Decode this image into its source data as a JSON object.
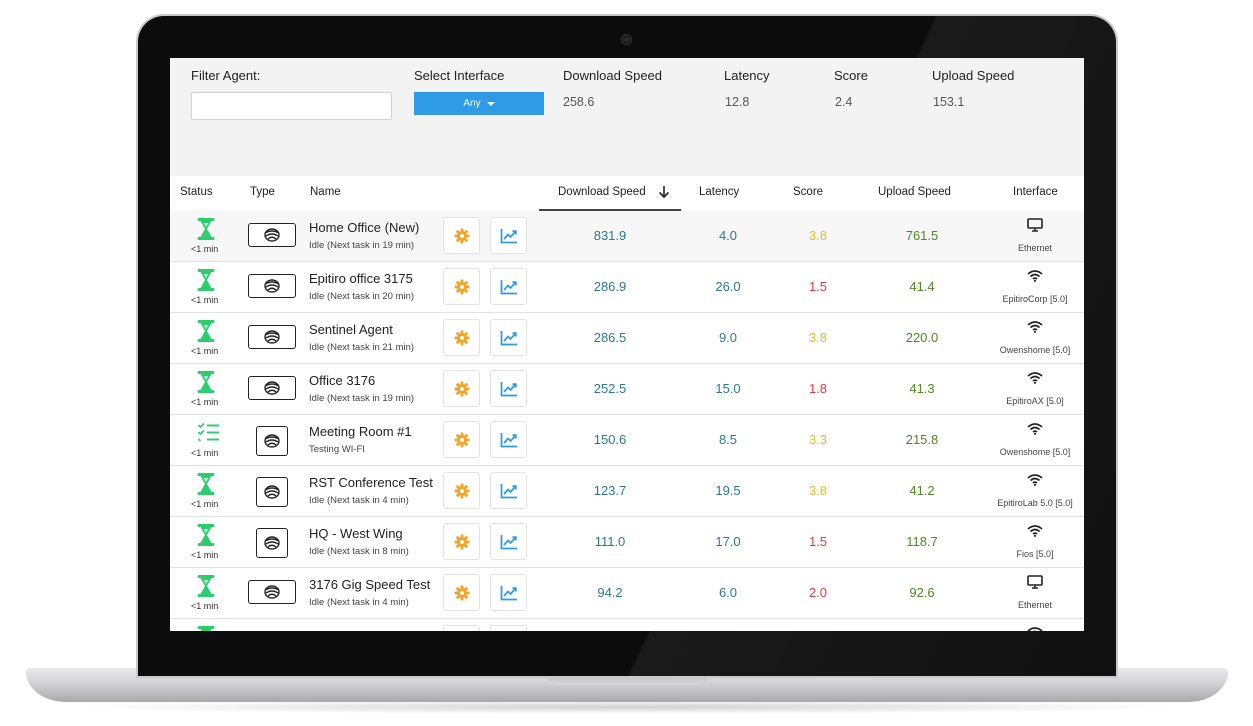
{
  "colors": {
    "accent": "#2f9be6",
    "status_green": "#2ecc71",
    "gear_orange": "#f0a428",
    "chart_blue": "#2f9be6",
    "download_teal": "#2b7a8c",
    "score_yellow": "#e2c12b",
    "score_red": "#e0393e",
    "upload_green": "#4d8a1f"
  },
  "filters": {
    "filter_agent_label": "Filter Agent:",
    "filter_agent_value": "",
    "select_interface_label": "Select Interface",
    "select_interface_value": "Any",
    "summary": {
      "download_label": "Download Speed",
      "download_value": "258.6",
      "latency_label": "Latency",
      "latency_value": "12.8",
      "score_label": "Score",
      "score_value": "2.4",
      "upload_label": "Upload Speed",
      "upload_value": "153.1"
    }
  },
  "table": {
    "headers": {
      "status": "Status",
      "type": "Type",
      "name": "Name",
      "download": "Download Speed",
      "latency": "Latency",
      "score": "Score",
      "upload": "Upload Speed",
      "interface": "Interface"
    },
    "sort_column": "Download Speed",
    "sort_direction": "descending",
    "rows": [
      {
        "status_icon": "hourglass-icon",
        "status_time": "<1 min",
        "type": "wide",
        "name": "Home Office (New)",
        "subtitle": "Idle (Next task in 19 min)",
        "download": "831.9",
        "latency": "4.0",
        "score": "3.8",
        "score_level": "yellow",
        "upload": "761.5",
        "iface_icon": "monitor-icon",
        "iface": "Ethernet"
      },
      {
        "status_icon": "hourglass-icon",
        "status_time": "<1 min",
        "type": "wide",
        "name": "Epitiro office 3175",
        "subtitle": "Idle (Next task in 20 min)",
        "download": "286.9",
        "latency": "26.0",
        "score": "1.5",
        "score_level": "red",
        "upload": "41.4",
        "iface_icon": "wifi-icon",
        "iface": "EpitiroCorp [5.0]"
      },
      {
        "status_icon": "hourglass-icon",
        "status_time": "<1 min",
        "type": "wide",
        "name": "Sentinel Agent",
        "subtitle": "Idle (Next task in 21 min)",
        "download": "286.5",
        "latency": "9.0",
        "score": "3.8",
        "score_level": "yellow",
        "upload": "220.0",
        "iface_icon": "wifi-icon",
        "iface": "Owenshome [5.0]"
      },
      {
        "status_icon": "hourglass-icon",
        "status_time": "<1 min",
        "type": "wide",
        "name": "Office 3176",
        "subtitle": "Idle (Next task in 19 min)",
        "download": "252.5",
        "latency": "15.0",
        "score": "1.8",
        "score_level": "red",
        "upload": "41.3",
        "iface_icon": "wifi-icon",
        "iface": "EpitiroAX [5.0]"
      },
      {
        "status_icon": "checklist-icon",
        "status_time": "<1 min",
        "type": "square",
        "name": "Meeting Room #1",
        "subtitle": "Testing WI-FI",
        "download": "150.6",
        "latency": "8.5",
        "score": "3.3",
        "score_level": "yellow",
        "upload": "215.8",
        "iface_icon": "wifi-icon",
        "iface": "Owenshome [5.0]"
      },
      {
        "status_icon": "hourglass-icon",
        "status_time": "<1 min",
        "type": "square",
        "name": "RST Conference Test",
        "subtitle": "Idle (Next task in 4 min)",
        "download": "123.7",
        "latency": "19.5",
        "score": "3.8",
        "score_level": "yellow",
        "upload": "41.2",
        "iface_icon": "wifi-icon",
        "iface": "EpitiroLab 5.0 [5.0]"
      },
      {
        "status_icon": "hourglass-icon",
        "status_time": "<1 min",
        "type": "square",
        "name": "HQ - West Wing",
        "subtitle": "Idle (Next task in 8 min)",
        "download": "111.0",
        "latency": "17.0",
        "score": "1.5",
        "score_level": "red",
        "upload": "118.7",
        "iface_icon": "wifi-icon",
        "iface": "Fios [5.0]"
      },
      {
        "status_icon": "hourglass-icon",
        "status_time": "<1 min",
        "type": "wide",
        "name": "3176 Gig Speed Test",
        "subtitle": "Idle (Next task in 4 min)",
        "download": "94.2",
        "latency": "6.0",
        "score": "2.0",
        "score_level": "red",
        "upload": "92.6",
        "iface_icon": "monitor-icon",
        "iface": "Ethernet"
      },
      {
        "status_icon": "hourglass-icon",
        "status_time": "",
        "type": "wide",
        "name": "",
        "subtitle": "",
        "download": "",
        "latency": "",
        "score": "",
        "score_level": "red",
        "upload": "",
        "iface_icon": "wifi-icon",
        "iface": ""
      }
    ]
  }
}
